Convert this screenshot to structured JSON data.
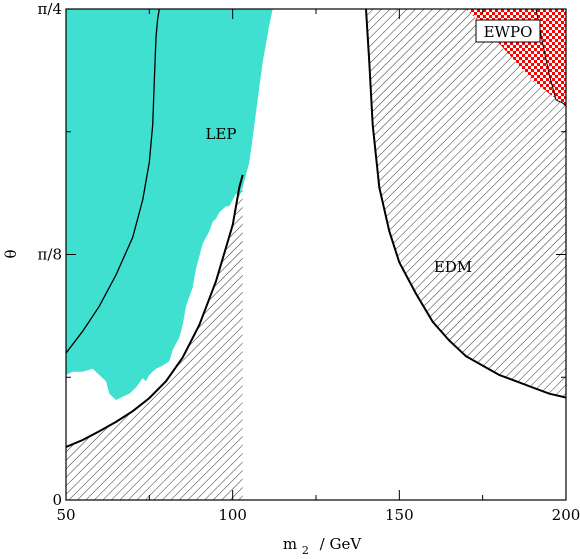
{
  "chart_data": {
    "type": "area",
    "xlabel": "m 2 / GeV",
    "xlabel_main": "m",
    "xlabel_sub": "2",
    "xlabel_unit": "/  GeV",
    "ylabel": "θ",
    "xlim": [
      50,
      200
    ],
    "ylim": [
      0,
      0.7854
    ],
    "x_ticks": [
      {
        "value": 50,
        "label": "50"
      },
      {
        "value": 100,
        "label": "100"
      },
      {
        "value": 150,
        "label": "150"
      },
      {
        "value": 200,
        "label": "200"
      }
    ],
    "y_ticks": [
      {
        "value": 0,
        "label": "0"
      },
      {
        "value": 0.3927,
        "label": "π/8"
      },
      {
        "value": 0.7854,
        "label": "π/4"
      }
    ],
    "minor_x_ticks": [
      75,
      125,
      175
    ],
    "minor_y_ticks": [
      0.19635,
      0.58905
    ],
    "regions": [
      {
        "label": "LEP",
        "fill": "#40e0d0",
        "pattern": "solid"
      },
      {
        "label": "EDM",
        "fill": "#000000",
        "pattern": "hatch"
      },
      {
        "label": "EWPO",
        "fill": "#ff0000",
        "pattern": "checker",
        "boxed": true
      }
    ],
    "lep_region_top": {
      "x": [
        50,
        50,
        52,
        55,
        58,
        60,
        62,
        63,
        65,
        67,
        69,
        71,
        73,
        74,
        75,
        77,
        79,
        81,
        82,
        84,
        85,
        86,
        88,
        89,
        90,
        91,
        93,
        94,
        95,
        96,
        97,
        98,
        99,
        100,
        101,
        102,
        103,
        104,
        105,
        106,
        107,
        108,
        109,
        110,
        111,
        112
      ],
      "y": [
        0.7854,
        0.2,
        0.205,
        0.205,
        0.21,
        0.2,
        0.19,
        0.17,
        0.16,
        0.165,
        0.17,
        0.18,
        0.195,
        0.19,
        0.2,
        0.21,
        0.215,
        0.222,
        0.24,
        0.26,
        0.28,
        0.31,
        0.34,
        0.37,
        0.39,
        0.41,
        0.43,
        0.445,
        0.45,
        0.46,
        0.465,
        0.47,
        0.47,
        0.48,
        0.49,
        0.485,
        0.5,
        0.52,
        0.54,
        0.58,
        0.62,
        0.66,
        0.7,
        0.73,
        0.76,
        0.7854
      ]
    },
    "edm_left_boundary": {
      "x": [
        50,
        55,
        60,
        65,
        70,
        75,
        80,
        85,
        90,
        95,
        100,
        101,
        102,
        103
      ],
      "y": [
        0.085,
        0.096,
        0.11,
        0.125,
        0.142,
        0.163,
        0.19,
        0.228,
        0.28,
        0.35,
        0.44,
        0.47,
        0.5,
        0.52
      ]
    },
    "edm_right_boundary": {
      "x": [
        140,
        141,
        142,
        144,
        147,
        150,
        155,
        160,
        165,
        170,
        175,
        180,
        185,
        190,
        195,
        200
      ],
      "y": [
        0.7854,
        0.7,
        0.6,
        0.5,
        0.43,
        0.38,
        0.33,
        0.285,
        0.255,
        0.23,
        0.215,
        0.2,
        0.19,
        0.18,
        0.17,
        0.164
      ]
    },
    "left_thin_curve": {
      "x": [
        50,
        55,
        60,
        65,
        70,
        73,
        75,
        76,
        76.5,
        77,
        77.5,
        78
      ],
      "y": [
        0.235,
        0.27,
        0.31,
        0.36,
        0.42,
        0.48,
        0.54,
        0.6,
        0.67,
        0.74,
        0.77,
        0.7854
      ]
    },
    "ewpo_boundary": {
      "x": [
        170,
        175,
        180,
        185,
        190,
        195,
        200
      ],
      "y": [
        0.7854,
        0.76,
        0.73,
        0.7,
        0.67,
        0.65,
        0.63
      ]
    },
    "ewpo_inner_line": {
      "x": [
        191,
        193,
        195,
        197,
        199,
        200
      ],
      "y": [
        0.7854,
        0.73,
        0.68,
        0.64,
        0.635,
        0.63
      ]
    }
  }
}
